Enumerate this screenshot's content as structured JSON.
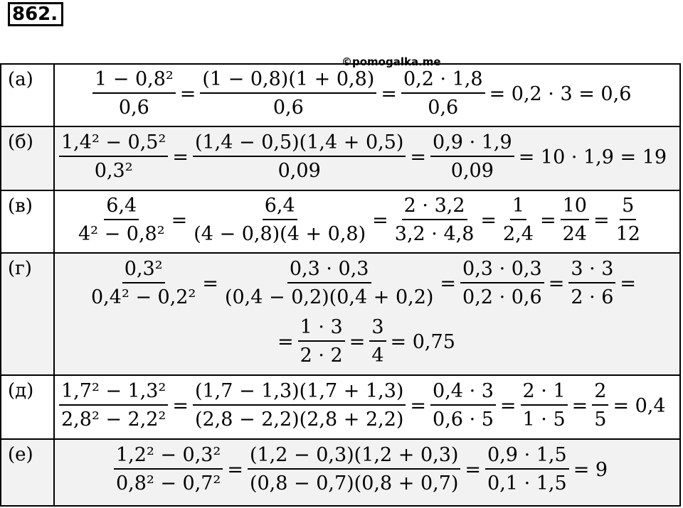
{
  "exercise_number": "862.",
  "watermark": "©pomogalka.me",
  "rows": [
    {
      "label": "(а)",
      "lines": [
        [
          {
            "n": "1 − 0,8²",
            "d": "0,6"
          },
          "=",
          {
            "n": "(1 − 0,8)(1 + 0,8)",
            "d": "0,6"
          },
          "=",
          {
            "n": "0,2 · 1,8",
            "d": "0,6"
          },
          "= 0,2 · 3 = 0,6"
        ]
      ]
    },
    {
      "label": "(б)",
      "lines": [
        [
          {
            "n": "1,4² − 0,5²",
            "d": "0,3²"
          },
          "=",
          {
            "n": "(1,4 − 0,5)(1,4 + 0,5)",
            "d": "0,09"
          },
          "=",
          {
            "n": "0,9 · 1,9",
            "d": "0,09"
          },
          "= 10 · 1,9 = 19"
        ]
      ]
    },
    {
      "label": "(в)",
      "lines": [
        [
          {
            "n": "6,4",
            "d": "4² − 0,8²"
          },
          "=",
          {
            "n": "6,4",
            "d": "(4 − 0,8)(4 + 0,8)"
          },
          "=",
          {
            "n": "2 · 3,2",
            "d": "3,2 · 4,8"
          },
          "=",
          {
            "n": "1",
            "d": "2,4"
          },
          "=",
          {
            "n": "10",
            "d": "24"
          },
          "=",
          {
            "n": "5",
            "d": "12"
          }
        ]
      ]
    },
    {
      "label": "(г)",
      "lines": [
        [
          {
            "n": "0,3²",
            "d": "0,4² − 0,2²"
          },
          "=",
          {
            "n": "0,3 · 0,3",
            "d": "(0,4 − 0,2)(0,4 + 0,2)"
          },
          "=",
          {
            "n": "0,3 · 0,3",
            "d": "0,2 · 0,6"
          },
          "=",
          {
            "n": "3 · 3",
            "d": "2 · 6"
          },
          "="
        ],
        [
          "=",
          {
            "n": "1 · 3",
            "d": "2 · 2"
          },
          "=",
          {
            "n": "3",
            "d": "4"
          },
          "= 0,75"
        ]
      ]
    },
    {
      "label": "(д)",
      "lines": [
        [
          {
            "n": "1,7² − 1,3²",
            "d": "2,8² − 2,2²"
          },
          "=",
          {
            "n": "(1,7 − 1,3)(1,7 + 1,3)",
            "d": "(2,8 − 2,2)(2,8 + 2,2)"
          },
          "=",
          {
            "n": "0,4 · 3",
            "d": "0,6 · 5"
          },
          "=",
          {
            "n": "2 · 1",
            "d": "1 · 5"
          },
          "=",
          {
            "n": "2",
            "d": "5"
          },
          "= 0,4"
        ]
      ]
    },
    {
      "label": "(е)",
      "lines": [
        [
          {
            "n": "1,2² − 0,3²",
            "d": "0,8² − 0,7²"
          },
          "=",
          {
            "n": "(1,2 − 0,3)(1,2 + 0,3)",
            "d": "(0,8 − 0,7)(0,8 + 0,7)"
          },
          "=",
          {
            "n": "0,9 · 1,5",
            "d": "0,1 · 1,5"
          },
          "= 9"
        ]
      ]
    }
  ]
}
